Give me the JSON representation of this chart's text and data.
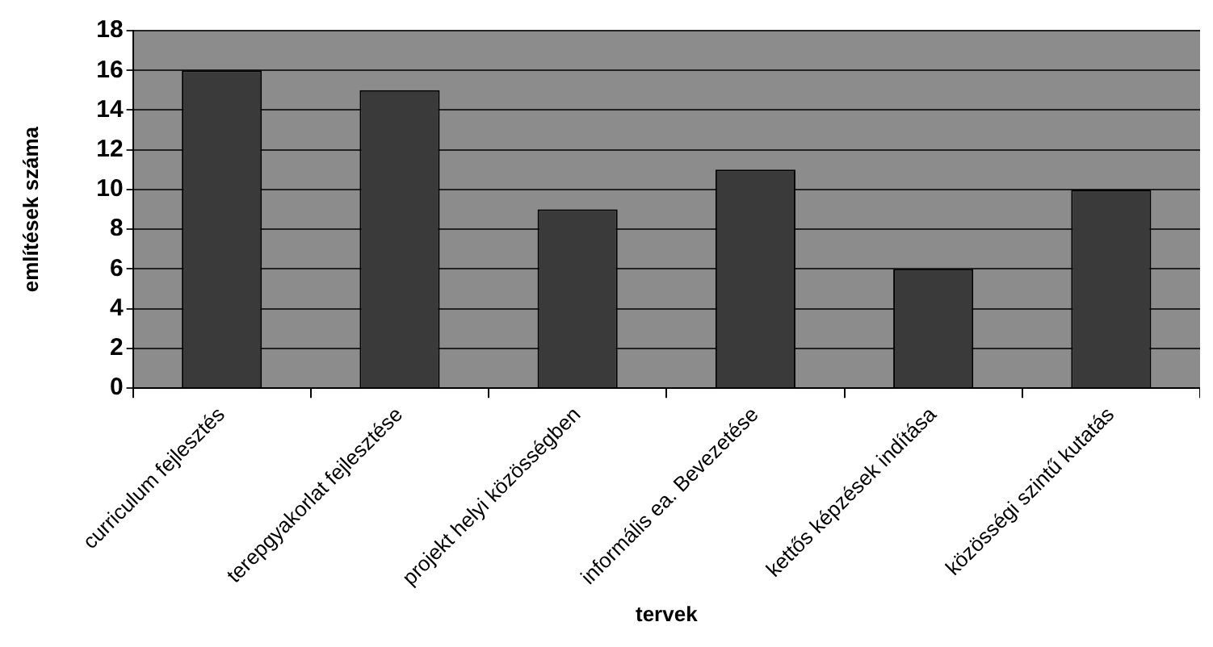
{
  "chart_data": {
    "type": "bar",
    "xlabel": "tervek",
    "ylabel": "említések száma",
    "categories": [
      "curriculum fejlesztés",
      "terepgyakorlat fejlesztése",
      "projekt helyi közösségben",
      "informális ea. Bevezetése",
      "kettős képzések indítása",
      "közösségi szintű kutatás"
    ],
    "values": [
      16,
      15,
      9,
      11,
      6,
      10
    ],
    "color": "#3a3a3a",
    "ylim": [
      0,
      18
    ],
    "yticks": [
      0,
      2,
      4,
      6,
      8,
      10,
      12,
      14,
      16,
      18
    ],
    "grid": "y",
    "legend": false
  }
}
